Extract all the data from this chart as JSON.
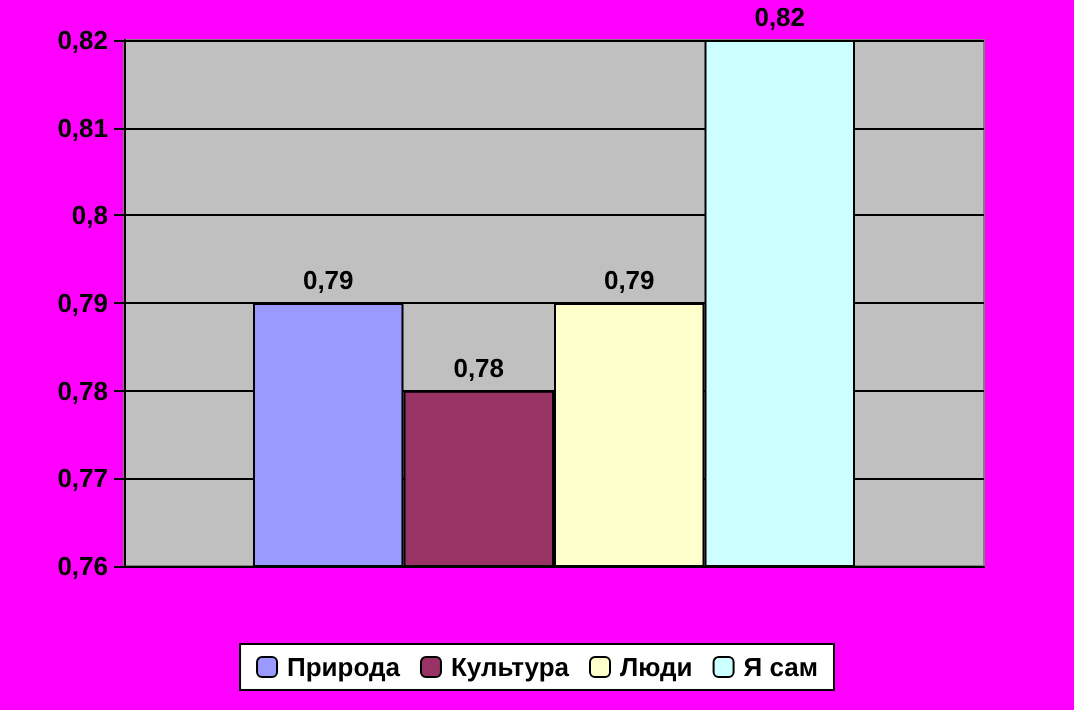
{
  "chart_data": {
    "type": "bar",
    "categories": [
      null
    ],
    "series": [
      {
        "name": "Природа",
        "color": "#9999ff",
        "values": [
          0.79
        ],
        "value_labels": [
          "0,79"
        ]
      },
      {
        "name": "Культура",
        "color": "#993366",
        "values": [
          0.78
        ],
        "value_labels": [
          "0,78"
        ]
      },
      {
        "name": "Люди",
        "color": "#ffffcc",
        "values": [
          0.79
        ],
        "value_labels": [
          "0,79"
        ]
      },
      {
        "name": "Я сам",
        "color": "#ccffff",
        "values": [
          0.82
        ],
        "value_labels": [
          "0,82"
        ]
      }
    ],
    "ylim": [
      0.76,
      0.82
    ],
    "yticks": [
      {
        "value": 0.76,
        "label": "0,76"
      },
      {
        "value": 0.77,
        "label": "0,77"
      },
      {
        "value": 0.78,
        "label": "0,78"
      },
      {
        "value": 0.79,
        "label": "0,79"
      },
      {
        "value": 0.8,
        "label": "0,8"
      },
      {
        "value": 0.81,
        "label": "0,81"
      },
      {
        "value": 0.82,
        "label": "0,82"
      }
    ],
    "grid": true,
    "legend": "bottom"
  }
}
